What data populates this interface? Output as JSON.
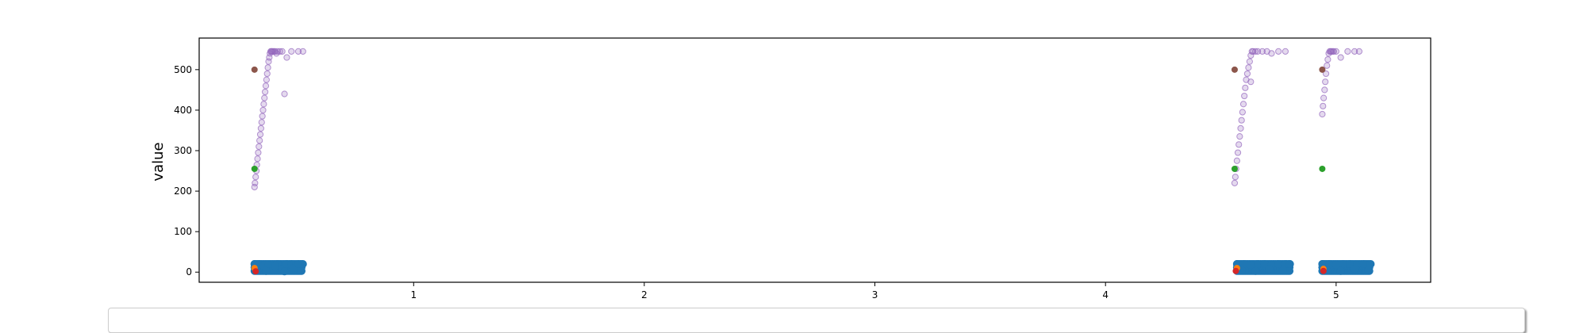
{
  "chart_data": {
    "type": "scatter",
    "title": "",
    "xlabel": "",
    "ylabel": "value",
    "xlim": [
      0.07,
      5.41
    ],
    "ylim": [
      -25,
      578
    ],
    "xticks": [
      1,
      2,
      3,
      4,
      5
    ],
    "xtick_labels": [
      "1",
      "2",
      "3",
      "4",
      "5"
    ],
    "yticks": [
      0,
      100,
      200,
      300,
      400,
      500
    ],
    "ytick_labels": [
      "0",
      "100",
      "200",
      "300",
      "400",
      "500"
    ],
    "grid": false,
    "legend": "bottom (clipped)",
    "colors": {
      "blue": "#1f77b4",
      "orange": "#ff7f0e",
      "green": "#2ca02c",
      "red": "#d62728",
      "purple": "#9467bd",
      "brown": "#8c564b"
    },
    "series": [
      {
        "color": "#9467bd",
        "marker": "hollow-circle",
        "x": [
          0.31,
          0.312,
          0.315,
          0.318,
          0.32,
          0.323,
          0.326,
          0.329,
          0.332,
          0.335,
          0.338,
          0.341,
          0.344,
          0.347,
          0.35,
          0.353,
          0.356,
          0.359,
          0.362,
          0.365,
          0.368,
          0.371,
          0.374,
          0.377,
          0.38,
          0.383,
          0.386,
          0.39,
          0.395,
          0.4,
          0.405,
          0.41,
          0.42,
          0.43,
          0.45,
          0.47,
          0.5,
          0.52,
          0.44,
          4.56,
          4.563,
          4.566,
          4.57,
          4.574,
          4.578,
          4.582,
          4.586,
          4.59,
          4.594,
          4.598,
          4.602,
          4.606,
          4.61,
          4.615,
          4.62,
          4.625,
          4.63,
          4.635,
          4.64,
          4.65,
          4.66,
          4.68,
          4.7,
          4.72,
          4.75,
          4.78,
          4.63,
          4.94,
          4.943,
          4.946,
          4.95,
          4.953,
          4.956,
          4.96,
          4.964,
          4.968,
          4.972,
          4.976,
          4.98,
          4.985,
          4.99,
          5.0,
          5.02,
          5.05,
          5.08,
          5.1
        ],
        "y": [
          210,
          220,
          235,
          250,
          265,
          280,
          295,
          310,
          325,
          340,
          355,
          370,
          385,
          400,
          415,
          430,
          445,
          460,
          475,
          490,
          505,
          520,
          530,
          540,
          545,
          545,
          545,
          545,
          545,
          545,
          540,
          545,
          545,
          545,
          530,
          545,
          545,
          545,
          440,
          220,
          235,
          255,
          275,
          295,
          315,
          335,
          355,
          375,
          395,
          415,
          435,
          455,
          475,
          490,
          505,
          520,
          535,
          545,
          545,
          545,
          545,
          545,
          545,
          540,
          545,
          545,
          470,
          390,
          410,
          430,
          450,
          470,
          490,
          510,
          525,
          540,
          545,
          545,
          545,
          545,
          545,
          545,
          530,
          545,
          545,
          545
        ]
      },
      {
        "color": "#1f77b4",
        "marker": "circle",
        "x": [
          0.31,
          0.33,
          0.35,
          0.37,
          0.39,
          0.41,
          0.43,
          0.45,
          0.47,
          0.49,
          0.51,
          0.52,
          0.32,
          0.36,
          0.4,
          0.44,
          0.48,
          0.5,
          4.57,
          4.6,
          4.63,
          4.66,
          4.69,
          4.72,
          4.75,
          4.78,
          4.8,
          4.59,
          4.65,
          4.71,
          4.77,
          4.94,
          4.97,
          5.0,
          5.03,
          5.06,
          5.09,
          5.12,
          5.15,
          4.96,
          5.02,
          5.08,
          5.14
        ],
        "y": [
          20,
          20,
          15,
          18,
          5,
          20,
          8,
          20,
          20,
          18,
          5,
          20,
          5,
          3,
          15,
          2,
          10,
          20,
          20,
          20,
          18,
          20,
          20,
          18,
          20,
          20,
          20,
          5,
          3,
          8,
          5,
          20,
          20,
          18,
          20,
          20,
          18,
          20,
          20,
          5,
          3,
          8,
          5
        ]
      },
      {
        "color": "#ff7f0e",
        "marker": "circle",
        "x": [
          0.31,
          4.57,
          4.945
        ],
        "y": [
          10,
          10,
          8
        ]
      },
      {
        "color": "#2ca02c",
        "marker": "circle",
        "x": [
          0.31,
          4.56,
          4.94
        ],
        "y": [
          255,
          255,
          255
        ]
      },
      {
        "color": "#d62728",
        "marker": "circle",
        "x": [
          0.315,
          4.565,
          4.945
        ],
        "y": [
          2,
          3,
          3
        ]
      },
      {
        "color": "#8c564b",
        "marker": "circle",
        "x": [
          0.31,
          4.56,
          4.94
        ],
        "y": [
          500,
          500,
          500
        ]
      }
    ]
  }
}
